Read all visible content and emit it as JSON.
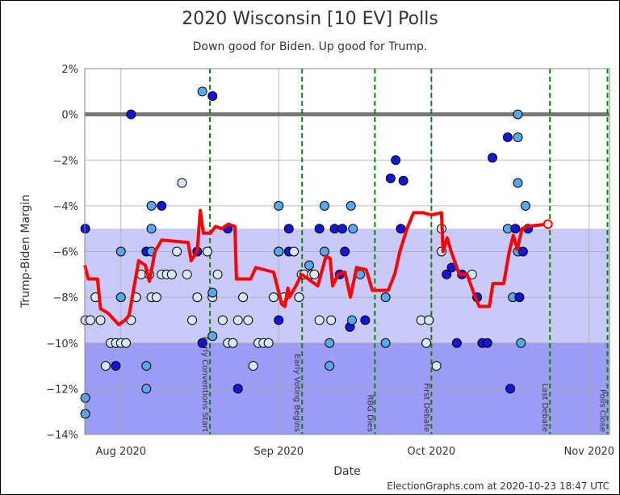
{
  "chart_data": {
    "type": "scatter",
    "title": "2020 Wisconsin [10 EV] Polls",
    "subtitle": "Down good for Biden. Up good for Trump.",
    "y_label": "Trump-Biden Margin",
    "x_label": "Date",
    "footer": "ElectionGraphs.com at 2020-10-23 18:47 UTC",
    "xlim": [
      206.9,
      310
    ],
    "ylim": [
      -14,
      2
    ],
    "xticks": [
      {
        "value": 214,
        "label": "Aug 2020"
      },
      {
        "value": 245,
        "label": "Sep 2020"
      },
      {
        "value": 275,
        "label": "Oct 2020"
      },
      {
        "value": 306,
        "label": "Nov 2020"
      }
    ],
    "yticks": [
      {
        "value": 2,
        "label": "2%"
      },
      {
        "value": 0,
        "label": "0%"
      },
      {
        "value": -2,
        "label": "−2%"
      },
      {
        "value": -4,
        "label": "−4%"
      },
      {
        "value": -6,
        "label": "−6%"
      },
      {
        "value": -8,
        "label": "−8%"
      },
      {
        "value": -10,
        "label": "−10%"
      },
      {
        "value": -12,
        "label": "−12%"
      },
      {
        "value": -14,
        "label": "−14%"
      }
    ],
    "grid": true,
    "bands": [
      {
        "from": -5,
        "to": -10,
        "color": "#c9c9fa"
      },
      {
        "from": -10,
        "to": -14,
        "color": "#9c9cf6"
      }
    ],
    "reference_line": {
      "value": 0,
      "color": "#777"
    },
    "events": [
      {
        "x": 231.5,
        "label": "Early Conventions Start"
      },
      {
        "x": 249.6,
        "label": "Early Voting Begins"
      },
      {
        "x": 263.9,
        "label": "RBG Dies"
      },
      {
        "x": 275,
        "label": "First Debate"
      },
      {
        "x": 298.3,
        "label": "Last Debate"
      },
      {
        "x": 309.6,
        "label": "Polls Close"
      }
    ],
    "series": [
      {
        "type": "scatter",
        "x": [
          207,
          207,
          207,
          207,
          208,
          209,
          210,
          211,
          212,
          213,
          213,
          214,
          214,
          214,
          215,
          216,
          216,
          217,
          218,
          219,
          219,
          219,
          219.6,
          220,
          220,
          220,
          220,
          221,
          222,
          222,
          223,
          224,
          225,
          226,
          227,
          228,
          229,
          229,
          230,
          230,
          231,
          232,
          232,
          232,
          232,
          233,
          234,
          235,
          235,
          236,
          237,
          237,
          238,
          239,
          240,
          241,
          242,
          243,
          244,
          245,
          245,
          245,
          245,
          246,
          247,
          247,
          248,
          249,
          249.5,
          250,
          251,
          251.5,
          252,
          253,
          253,
          254,
          254,
          255,
          255,
          255.3,
          256,
          257,
          257.5,
          258,
          259,
          259.2,
          259.4,
          259.6,
          261,
          262,
          266,
          266,
          267,
          268,
          269,
          269.5,
          273,
          274,
          274.5,
          276,
          277,
          277,
          278,
          279,
          280,
          281,
          283,
          284,
          285,
          286,
          287,
          290,
          290,
          290.5,
          291,
          291.5,
          292,
          292,
          292,
          292,
          292.3,
          292.6,
          293,
          293.5,
          294
        ],
        "values": [
          -5,
          -12.4,
          -13.1,
          -9,
          -9,
          -8,
          -9,
          -11,
          -10,
          -11,
          -10,
          -10,
          -6,
          -8,
          -10,
          -9,
          0,
          -8,
          -7,
          -11,
          -12,
          -6,
          -7,
          -4,
          -5,
          -6,
          -8,
          -8,
          -4,
          -7,
          -7,
          -7,
          -6,
          -3,
          -7,
          -9,
          -6,
          -8,
          1,
          -10,
          -6,
          0.8,
          -8,
          -7.8,
          -9.7,
          -7,
          -9,
          -5,
          -10,
          -10,
          -12,
          -9,
          -8,
          -9,
          -11,
          -10,
          -10,
          -10,
          -8,
          -6,
          -4,
          -6,
          -9,
          -8,
          -5,
          -6,
          -6,
          -8,
          -7,
          -7,
          -6.6,
          -7,
          -7,
          -5,
          -9,
          -4,
          -6,
          -10,
          -11,
          -9,
          -5,
          -7,
          -5,
          -6,
          -9.3,
          -4,
          -9,
          -5,
          -7,
          -9,
          -8,
          -10,
          -2.8,
          -2,
          -5,
          -2.9,
          -9,
          -10,
          -9,
          -11,
          -5,
          -6,
          -7,
          -6.7,
          -10,
          -7,
          -7,
          -8,
          -10,
          -10,
          -1.9,
          -5,
          -1,
          -12,
          -8,
          -5,
          -6,
          0,
          -3,
          -1,
          -8,
          -10,
          -6,
          -4,
          -5
        ],
        "colors": [
          "#1515d8",
          "#5aa8ec",
          "#5aa8ec",
          "#d6e8f7",
          "#d6e8f7",
          "#d6e8f7",
          "#d6e8f7",
          "#d6e8f7",
          "#d6e8f7",
          "#1515d8",
          "#d6e8f7",
          "#d6e8f7",
          "#5aa8ec",
          "#5aa8ec",
          "#d6e8f7",
          "#d6e8f7",
          "#1515d8",
          "#d6e8f7",
          "#d6e8f7",
          "#5aa8ec",
          "#5aa8ec",
          "#1515d8",
          "#d6e8f7",
          "#5aa8ec",
          "#5aa8ec",
          "#5aa8ec",
          "#d6e8f7",
          "#d6e8f7",
          "#1515d8",
          "#d6e8f7",
          "#d6e8f7",
          "#d6e8f7",
          "#d6e8f7",
          "#d6e8f7",
          "#d6e8f7",
          "#d6e8f7",
          "#1515d8",
          "#d6e8f7",
          "#5aa8ec",
          "#1515d8",
          "#d6e8f7",
          "#1515d8",
          "#d6e8f7",
          "#5aa8ec",
          "#5aa8ec",
          "#d6e8f7",
          "#d6e8f7",
          "#1515d8",
          "#d6e8f7",
          "#d6e8f7",
          "#1515d8",
          "#d6e8f7",
          "#d6e8f7",
          "#d6e8f7",
          "#d6e8f7",
          "#d6e8f7",
          "#d6e8f7",
          "#d6e8f7",
          "#d6e8f7",
          "#d6e8f7",
          "#5aa8ec",
          "#5aa8ec",
          "#1515d8",
          "#d6e8f7",
          "#1515d8",
          "#1515d8",
          "#d6e8f7",
          "#d6e8f7",
          "#d6e8f7",
          "#d6e8f7",
          "#5aa8ec",
          "#d6e8f7",
          "#d6e8f7",
          "#1515d8",
          "#d6e8f7",
          "#5aa8ec",
          "#5aa8ec",
          "#5aa8ec",
          "#5aa8ec",
          "#d6e8f7",
          "#1515d8",
          "#1515d8",
          "#1515d8",
          "#1515d8",
          "#1515d8",
          "#5aa8ec",
          "#5aa8ec",
          "#5aa8ec",
          "#5aa8ec",
          "#1515d8",
          "#5aa8ec",
          "#5aa8ec",
          "#1515d8",
          "#1515d8",
          "#1515d8",
          "#1515d8",
          "#d6e8f7",
          "#d6e8f7",
          "#d6e8f7",
          "#d6e8f7",
          "#d6e8f7",
          "#d6e8f7",
          "#1515d8",
          "#1515d8",
          "#1515d8",
          "#1515d8",
          "#d6e8f7",
          "#1515d8",
          "#1515d8",
          "#1515d8",
          "#1515d8",
          "#5aa8ec",
          "#1515d8",
          "#1515d8",
          "#5aa8ec",
          "#1515d8",
          "#5aa8ec",
          "#5aa8ec",
          "#5aa8ec",
          "#5aa8ec",
          "#1515d8",
          "#5aa8ec",
          "#1515d8",
          "#5aa8ec",
          "#1515d8"
        ]
      },
      {
        "type": "line",
        "color": "#ff0000",
        "x": [
          206.9,
          207.6,
          209.4,
          210,
          211.5,
          213.6,
          214.8,
          215.6,
          217.5,
          218.8,
          219.6,
          220.7,
          222,
          227.2,
          227.8,
          229,
          229.6,
          230.2,
          231.6,
          232.6,
          233.8,
          235.1,
          236.4,
          236.7,
          239.5,
          240.5,
          244,
          245.6,
          246.2,
          246.8,
          247.1,
          248.4,
          249.5,
          252.7,
          254.3,
          255.1,
          255.6,
          256.7,
          258,
          259.1,
          260.3,
          262.2,
          263.4,
          266.5,
          267.8,
          268.8,
          270.2,
          271.5,
          273.4,
          275,
          277,
          277.3,
          278.1,
          278.9,
          280.5,
          282,
          283.3,
          284.4,
          286.4,
          287.1,
          289.2,
          290.3,
          291.1,
          291.9,
          292.8,
          293.9,
          297.9
        ],
        "values": [
          -6.6,
          -7.2,
          -7.2,
          -8.5,
          -8.7,
          -9.2,
          -9,
          -8.8,
          -6.4,
          -6.6,
          -7.3,
          -6,
          -5.5,
          -5.6,
          -6.4,
          -6,
          -4.2,
          -5.2,
          -5.2,
          -4.9,
          -5,
          -4.8,
          -4.9,
          -7.2,
          -7.2,
          -6.7,
          -6.9,
          -8.3,
          -8.4,
          -7.6,
          -8,
          -7.5,
          -7,
          -7.5,
          -6.2,
          -6.3,
          -7.5,
          -7,
          -6.9,
          -8,
          -6.7,
          -6.8,
          -7.7,
          -7.7,
          -7,
          -6,
          -5,
          -4.3,
          -4.3,
          -4.4,
          -4.3,
          -6,
          -5.4,
          -6,
          -7,
          -7,
          -7.8,
          -8.4,
          -8.4,
          -7.4,
          -7.4,
          -6,
          -5.3,
          -5.9,
          -5,
          -4.9,
          -4.8
        ]
      }
    ]
  }
}
